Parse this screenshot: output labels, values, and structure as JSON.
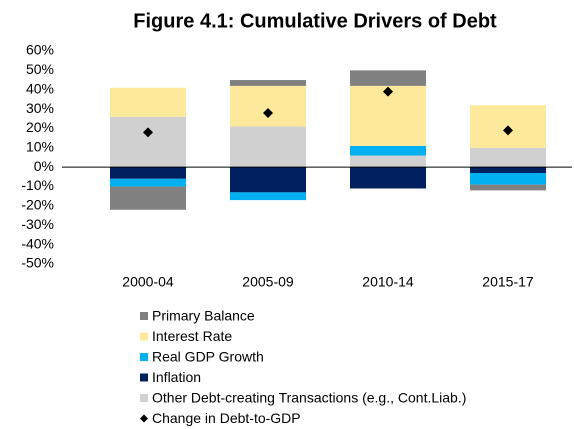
{
  "chart_data": {
    "type": "bar",
    "stacked": true,
    "title": "Figure 4.1: Cumulative Drivers of Debt",
    "categories": [
      "2000-04",
      "2005-09",
      "2010-14",
      "2015-17"
    ],
    "series": [
      {
        "name": "Primary Balance",
        "color": "#808080",
        "type": "bar",
        "values": [
          -12,
          3,
          8,
          -3
        ]
      },
      {
        "name": "Interest Rate",
        "color": "#fde99b",
        "type": "bar",
        "values": [
          15,
          21,
          31,
          22
        ]
      },
      {
        "name": "Real GDP Growth",
        "color": "#00b0f0",
        "type": "bar",
        "values": [
          -4,
          -4,
          5,
          -6
        ]
      },
      {
        "name": "Inflation",
        "color": "#002060",
        "type": "bar",
        "values": [
          -6,
          -13,
          -11,
          -3
        ]
      },
      {
        "name": "Other Debt-creating Transactions (e.g., Cont.Liab.)",
        "color": "#d0d0d0",
        "type": "bar",
        "values": [
          26,
          21,
          6,
          10
        ]
      },
      {
        "name": "Change in Debt-to-GDP",
        "color": "#000000",
        "type": "scatter",
        "marker": "diamond",
        "values": [
          18,
          28,
          39,
          19
        ]
      }
    ],
    "ylim": [
      -50,
      60
    ],
    "yticks": [
      {
        "value": 60,
        "label": "60%"
      },
      {
        "value": 50,
        "label": "50%"
      },
      {
        "value": 40,
        "label": "40%"
      },
      {
        "value": 30,
        "label": "30%"
      },
      {
        "value": 20,
        "label": "20%"
      },
      {
        "value": 10,
        "label": "10%"
      },
      {
        "value": 0,
        "label": "0%"
      },
      {
        "value": -10,
        "label": "-10%"
      },
      {
        "value": -20,
        "label": "-20%"
      },
      {
        "value": -30,
        "label": "-30%"
      },
      {
        "value": -40,
        "label": "-40%"
      },
      {
        "value": -50,
        "label": "-50%"
      }
    ],
    "grid": false
  }
}
